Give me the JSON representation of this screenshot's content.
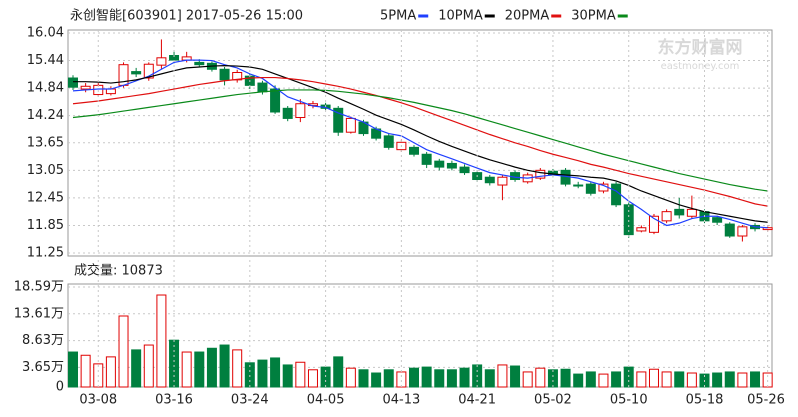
{
  "chart_data": [
    {
      "type": "candlestick",
      "title": "永创智能[603901] 2017-05-26 15:00",
      "watermark": [
        "东方财富网",
        "eastmoney.com"
      ],
      "up_color": "#e00000",
      "down_color": "#007f3f",
      "ylim": [
        11.25,
        16.04
      ],
      "yticks": [
        16.04,
        15.44,
        14.84,
        14.24,
        13.65,
        13.05,
        12.45,
        11.85,
        11.25
      ],
      "grid": true,
      "open": [
        15.06,
        14.82,
        14.7,
        14.72,
        14.9,
        15.2,
        15.06,
        15.34,
        15.55,
        15.45,
        15.4,
        15.38,
        15.25,
        15.02,
        15.1,
        14.95,
        14.82,
        14.4,
        14.2,
        14.46,
        14.47,
        14.4,
        13.88,
        14.1,
        13.95,
        13.8,
        13.5,
        13.55,
        13.4,
        13.25,
        13.2,
        13.12,
        13.0,
        12.9,
        12.73,
        13.0,
        12.8,
        12.88,
        13.03,
        13.05,
        12.73,
        12.75,
        12.6,
        12.75,
        12.3,
        11.73,
        11.7,
        11.95,
        12.2,
        12.05,
        12.15,
        12.02,
        11.88,
        11.62,
        11.85,
        11.76
      ],
      "high": [
        15.12,
        14.95,
        14.95,
        14.88,
        15.4,
        15.28,
        15.4,
        15.9,
        15.66,
        15.63,
        15.47,
        15.42,
        15.3,
        15.24,
        15.15,
        15.0,
        14.9,
        14.45,
        14.6,
        14.56,
        14.52,
        14.45,
        14.22,
        14.15,
        14.0,
        13.85,
        13.72,
        13.6,
        13.45,
        13.3,
        13.26,
        13.18,
        13.05,
        12.95,
        12.95,
        13.05,
        13.0,
        13.1,
        13.08,
        13.1,
        12.8,
        12.8,
        12.8,
        12.8,
        12.35,
        11.85,
        12.1,
        12.2,
        12.45,
        12.5,
        12.2,
        12.06,
        11.92,
        11.86,
        11.9,
        11.86
      ],
      "low": [
        14.8,
        14.75,
        14.66,
        14.68,
        14.85,
        15.08,
        15.0,
        15.25,
        15.38,
        15.4,
        15.3,
        15.2,
        14.9,
        14.96,
        14.82,
        14.7,
        14.28,
        14.12,
        14.1,
        14.4,
        14.36,
        13.8,
        13.85,
        13.8,
        13.7,
        13.5,
        13.45,
        13.35,
        13.1,
        13.05,
        13.05,
        12.95,
        12.8,
        12.72,
        12.4,
        12.8,
        12.76,
        12.84,
        12.9,
        12.7,
        12.66,
        12.5,
        12.55,
        12.25,
        11.58,
        11.7,
        11.66,
        11.9,
        12.0,
        12.0,
        11.9,
        11.86,
        11.58,
        11.5,
        11.72,
        11.72
      ],
      "close": [
        14.86,
        14.88,
        14.9,
        14.82,
        15.35,
        15.15,
        15.36,
        15.5,
        15.45,
        15.52,
        15.35,
        15.25,
        15.02,
        15.18,
        14.9,
        14.76,
        14.32,
        14.18,
        14.5,
        14.5,
        14.4,
        13.88,
        14.18,
        13.85,
        13.75,
        13.55,
        13.66,
        13.4,
        13.18,
        13.12,
        13.1,
        13.0,
        12.85,
        12.78,
        12.9,
        12.85,
        12.95,
        13.05,
        12.95,
        12.75,
        12.72,
        12.55,
        12.75,
        12.3,
        11.65,
        11.8,
        12.05,
        12.15,
        12.08,
        12.2,
        11.95,
        11.92,
        11.62,
        11.82,
        11.78,
        11.8
      ],
      "series": [
        {
          "name": "5PMA",
          "color": "#1f3fff",
          "values": [
            14.78,
            14.8,
            14.82,
            14.82,
            14.9,
            15.0,
            15.1,
            15.25,
            15.4,
            15.45,
            15.45,
            15.44,
            15.35,
            15.28,
            15.15,
            15.05,
            14.85,
            14.65,
            14.55,
            14.45,
            14.42,
            14.3,
            14.2,
            14.1,
            13.95,
            13.85,
            13.8,
            13.65,
            13.5,
            13.4,
            13.3,
            13.2,
            13.1,
            13.0,
            12.95,
            12.9,
            12.88,
            12.92,
            12.95,
            12.92,
            12.88,
            12.8,
            12.72,
            12.6,
            12.38,
            12.2,
            12.0,
            11.85,
            11.9,
            12.0,
            12.05,
            12.05,
            11.98,
            11.9,
            11.82,
            11.8
          ]
        },
        {
          "name": "10PMA",
          "color": "#000000",
          "values": [
            14.98,
            14.98,
            14.97,
            14.95,
            14.98,
            15.02,
            15.08,
            15.15,
            15.22,
            15.28,
            15.3,
            15.32,
            15.33,
            15.32,
            15.3,
            15.25,
            15.15,
            15.05,
            14.95,
            14.85,
            14.75,
            14.62,
            14.5,
            14.38,
            14.25,
            14.15,
            14.05,
            13.93,
            13.8,
            13.68,
            13.57,
            13.47,
            13.37,
            13.28,
            13.2,
            13.12,
            13.05,
            13.0,
            12.97,
            12.95,
            12.93,
            12.9,
            12.88,
            12.82,
            12.72,
            12.6,
            12.5,
            12.4,
            12.3,
            12.22,
            12.15,
            12.1,
            12.05,
            12.0,
            11.95,
            11.92
          ]
        },
        {
          "name": "20PMA",
          "color": "#e01010",
          "values": [
            14.5,
            14.53,
            14.56,
            14.6,
            14.64,
            14.68,
            14.72,
            14.77,
            14.82,
            14.87,
            14.92,
            14.96,
            15.0,
            15.03,
            15.06,
            15.07,
            15.07,
            15.05,
            15.02,
            14.98,
            14.93,
            14.88,
            14.82,
            14.75,
            14.68,
            14.6,
            14.52,
            14.43,
            14.33,
            14.23,
            14.13,
            14.03,
            13.93,
            13.83,
            13.74,
            13.65,
            13.57,
            13.48,
            13.4,
            13.33,
            13.26,
            13.18,
            13.12,
            13.05,
            12.98,
            12.92,
            12.86,
            12.8,
            12.74,
            12.68,
            12.62,
            12.55,
            12.48,
            12.4,
            12.32,
            12.27
          ]
        },
        {
          "name": "30PMA",
          "color": "#0a8a1a",
          "values": [
            14.2,
            14.23,
            14.26,
            14.3,
            14.34,
            14.38,
            14.42,
            14.46,
            14.5,
            14.54,
            14.58,
            14.62,
            14.66,
            14.7,
            14.73,
            14.76,
            14.78,
            14.8,
            14.8,
            14.8,
            14.79,
            14.77,
            14.74,
            14.71,
            14.67,
            14.63,
            14.58,
            14.53,
            14.47,
            14.41,
            14.35,
            14.28,
            14.2,
            14.12,
            14.04,
            13.96,
            13.88,
            13.8,
            13.72,
            13.64,
            13.56,
            13.48,
            13.4,
            13.33,
            13.26,
            13.19,
            13.12,
            13.05,
            12.98,
            12.92,
            12.86,
            12.8,
            12.74,
            12.69,
            12.64,
            12.6
          ]
        }
      ]
    },
    {
      "type": "bar",
      "title": "成交量: 10873",
      "ylim": [
        0,
        18.59
      ],
      "yticks": [
        {
          "value": 18.59,
          "label": "18.59万"
        },
        {
          "value": 13.61,
          "label": "13.61万"
        },
        {
          "value": 8.63,
          "label": "8.63万"
        },
        {
          "value": 3.65,
          "label": "3.65万"
        },
        0
      ],
      "grid": true,
      "categories": [
        null,
        null,
        "03-08",
        null,
        null,
        null,
        null,
        null,
        "03-16",
        null,
        null,
        null,
        null,
        null,
        "03-24",
        null,
        null,
        null,
        null,
        null,
        "04-05",
        null,
        null,
        null,
        null,
        null,
        "04-13",
        null,
        null,
        null,
        null,
        null,
        "04-21",
        null,
        null,
        null,
        null,
        null,
        "05-02",
        null,
        null,
        null,
        null,
        null,
        "05-10",
        null,
        null,
        null,
        null,
        null,
        "05-18",
        null,
        null,
        null,
        null,
        "05-26"
      ],
      "values": [
        6.5,
        5.9,
        4.3,
        5.6,
        13.2,
        6.9,
        7.8,
        17.1,
        8.7,
        6.5,
        6.5,
        7.2,
        7.8,
        6.9,
        4.5,
        5.0,
        5.4,
        4.1,
        4.6,
        3.2,
        3.7,
        5.6,
        3.5,
        3.2,
        2.6,
        3.2,
        2.8,
        3.5,
        3.7,
        3.2,
        3.2,
        3.5,
        4.1,
        3.2,
        4.1,
        3.9,
        2.8,
        3.5,
        3.2,
        3.3,
        2.4,
        2.8,
        2.4,
        2.8,
        3.7,
        2.8,
        3.3,
        2.8,
        2.8,
        2.6,
        2.4,
        2.6,
        2.8,
        2.6,
        2.8,
        2.6
      ]
    }
  ]
}
